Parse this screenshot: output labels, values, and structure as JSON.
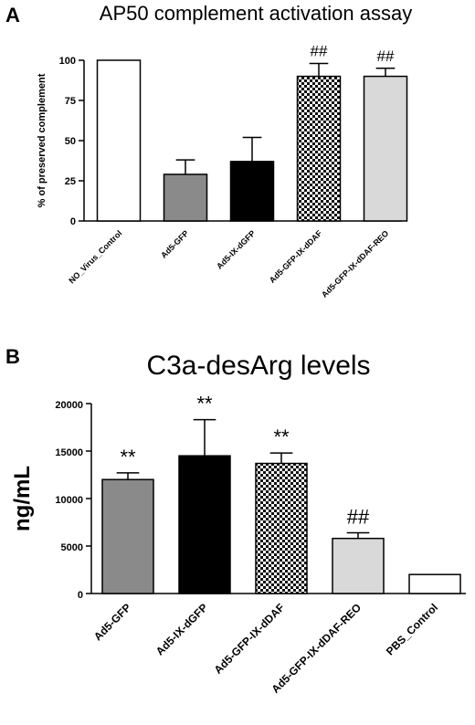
{
  "panels": {
    "a": {
      "letter": "A"
    },
    "b": {
      "letter": "B"
    }
  },
  "chart_data": [
    {
      "type": "bar",
      "title": "AP50 complement activation assay",
      "xlabel": "",
      "ylabel": "% of preserved complement",
      "ylim": [
        0,
        100
      ],
      "yticks": [
        0,
        25,
        50,
        75,
        100
      ],
      "ytick_labels": [
        "0",
        "25",
        "50",
        "75",
        "100"
      ],
      "categories": [
        "NO_Virus_Control",
        "Ad5-GFP",
        "Ad5-IX-dGFP",
        "Ad5-GFP-IX-dDAF",
        "Ad5-GFP-IX-dDAF-REO"
      ],
      "values": [
        100,
        29,
        37,
        90,
        90
      ],
      "errors": [
        0,
        9,
        15,
        8,
        5
      ],
      "annotations": [
        "",
        "",
        "",
        "##",
        "##"
      ],
      "fills": [
        "white",
        "#8a8a8a",
        "#000000",
        "checker",
        "#d9d9d9"
      ],
      "grid": false,
      "legend": "none"
    },
    {
      "type": "bar",
      "title": "C3a-desArg levels",
      "xlabel": "",
      "ylabel": "ng/mL",
      "ylim": [
        0,
        20000
      ],
      "yticks": [
        0,
        5000,
        10000,
        15000,
        20000
      ],
      "ytick_labels": [
        "0",
        "5000",
        "10000",
        "15000",
        "20000"
      ],
      "categories": [
        "Ad5-GFP",
        "Ad5-IX-dGFP",
        "Ad5-GFP-IX-dDAF",
        "Ad5-GFP-IX-dDAF-REO",
        "PBS_Control"
      ],
      "values": [
        12000,
        14500,
        13700,
        5800,
        2000
      ],
      "errors": [
        700,
        3800,
        1100,
        600,
        0
      ],
      "annotations": [
        "**",
        "**",
        "**",
        "##",
        ""
      ],
      "fills": [
        "#8a8a8a",
        "#000000",
        "checker",
        "#d9d9d9",
        "white"
      ],
      "grid": false,
      "legend": "none"
    }
  ]
}
